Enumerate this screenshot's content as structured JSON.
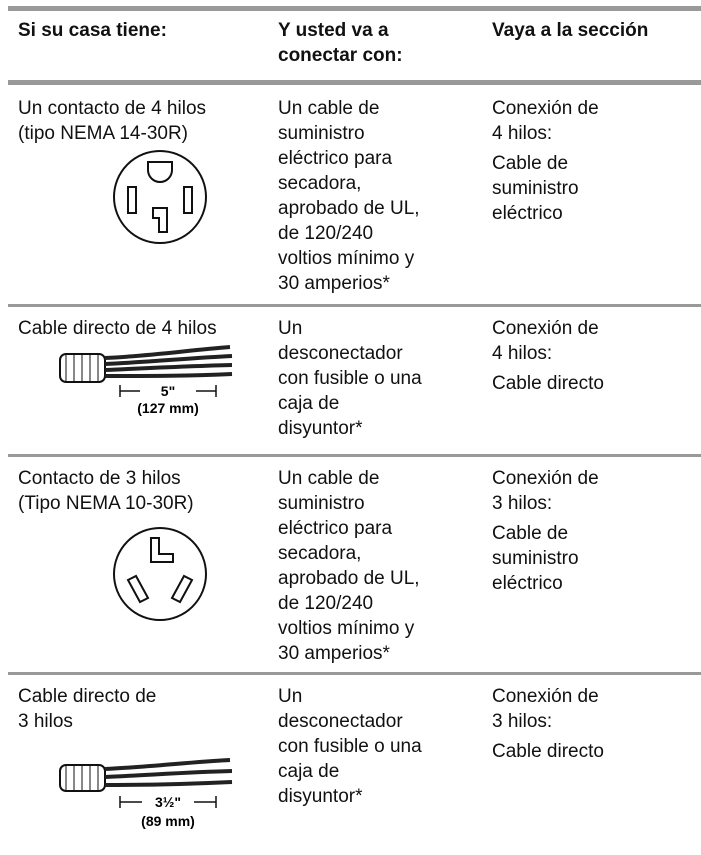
{
  "table": {
    "header": [
      [
        "Si su casa tiene:"
      ],
      [
        "Y usted va a",
        "conectar con:"
      ],
      [
        "Vaya a la sección"
      ]
    ],
    "rows": [
      {
        "cells": [
          [
            "Un contacto de 4 hilos",
            "(tipo NEMA 14-30R)"
          ],
          [
            "Un cable de",
            "suministro",
            "eléctrico para",
            "secadora,",
            "aprobado de UL,",
            "de 120/240",
            "voltios mínimo y",
            "30 amperios*"
          ],
          [
            [
              "Conexión de",
              "4 hilos:"
            ],
            [
              "Cable de",
              "suministro",
              "eléctrico"
            ]
          ]
        ]
      },
      {
        "cells": [
          [
            "Cable directo de 4 hilos"
          ],
          [
            "Un",
            "desconectador",
            "con fusible o una",
            "caja de",
            "disyuntor*"
          ],
          [
            [
              "Conexión de",
              "4 hilos:"
            ],
            [
              "Cable directo"
            ]
          ]
        ],
        "figure": [
          "5\"",
          "(127 mm)"
        ]
      },
      {
        "cells": [
          [
            "Contacto de 3 hilos",
            "(Tipo NEMA 10-30R)"
          ],
          [
            "Un cable de",
            "suministro",
            "eléctrico para",
            "secadora,",
            "aprobado de UL,",
            "de 120/240",
            "voltios mínimo y",
            "30 amperios*"
          ],
          [
            [
              "Conexión de",
              "3 hilos:"
            ],
            [
              "Cable de",
              "suministro",
              "eléctrico"
            ]
          ]
        ]
      },
      {
        "cells": [
          [
            "Cable directo de",
            "3 hilos"
          ],
          [
            "Un",
            "desconectador",
            "con fusible o una",
            "caja de",
            "disyuntor*"
          ],
          [
            [
              "Conexión de",
              "3 hilos:"
            ],
            [
              "Cable directo"
            ]
          ]
        ],
        "figure": [
          "3½\"",
          "(89 mm)"
        ]
      }
    ]
  }
}
